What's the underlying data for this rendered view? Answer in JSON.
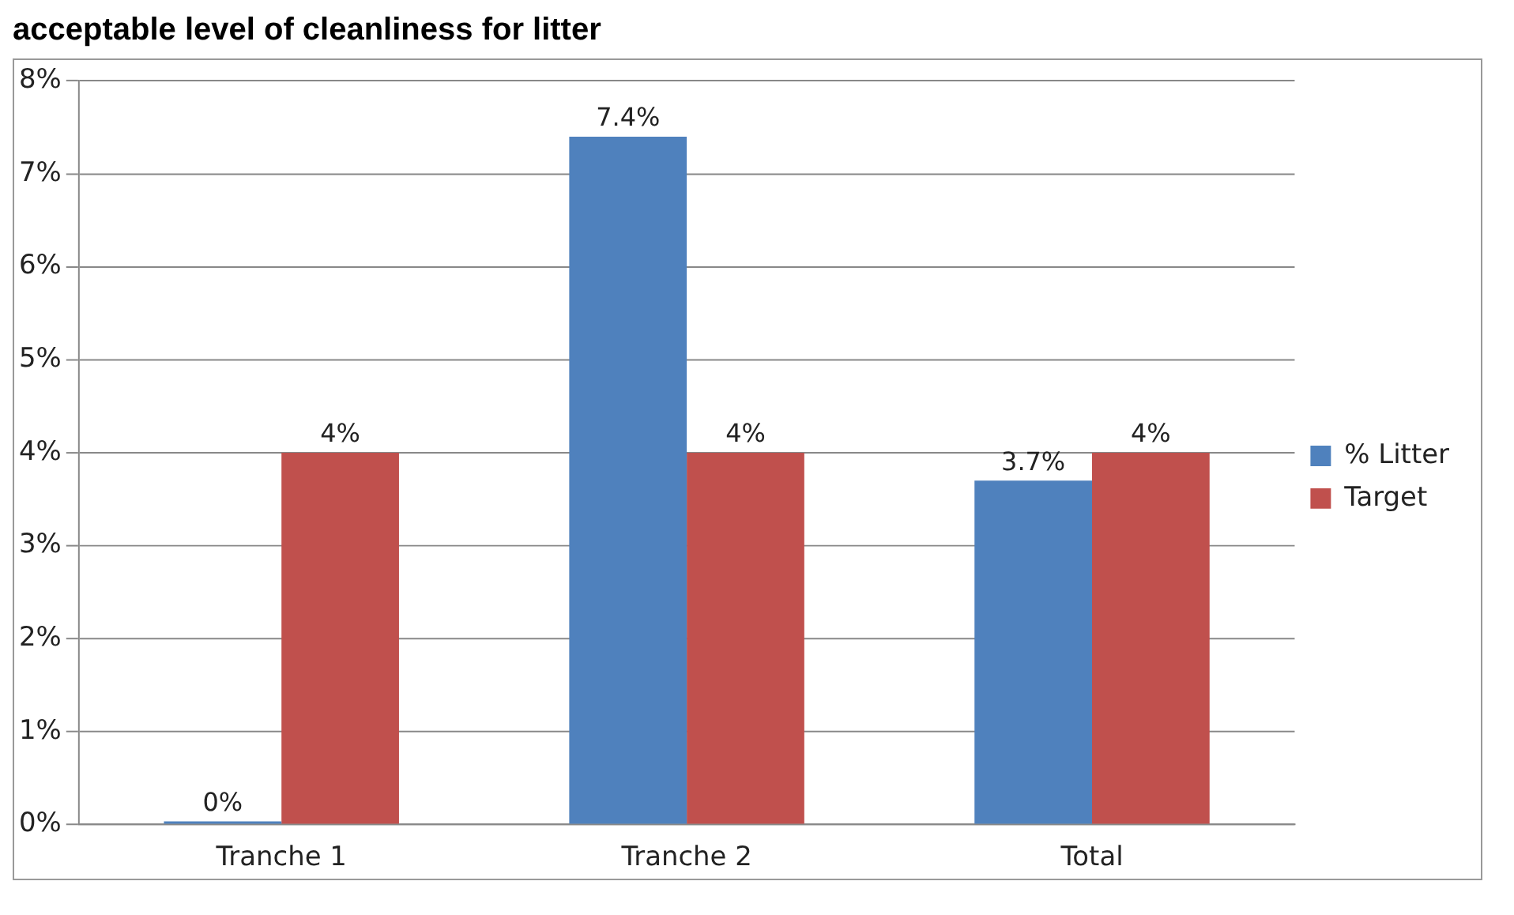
{
  "chart_data": {
    "type": "bar",
    "title": "acceptable level of cleanliness for litter",
    "categories": [
      "Tranche 1",
      "Tranche 2",
      "Total"
    ],
    "series": [
      {
        "name": "% Litter",
        "color": "#4f81bd",
        "values": [
          0,
          7.4,
          3.7
        ],
        "value_labels": [
          "0%",
          "7.4%",
          "3.7%"
        ]
      },
      {
        "name": "Target",
        "color": "#c0504d",
        "values": [
          4,
          4,
          4
        ],
        "value_labels": [
          "4%",
          "4%",
          "4%"
        ]
      }
    ],
    "ylim": [
      0,
      8
    ],
    "yticks": [
      {
        "value": 0,
        "label": "0%"
      },
      {
        "value": 1,
        "label": "1%"
      },
      {
        "value": 2,
        "label": "2%"
      },
      {
        "value": 3,
        "label": "3%"
      },
      {
        "value": 4,
        "label": "4%"
      },
      {
        "value": 5,
        "label": "5%"
      },
      {
        "value": 6,
        "label": "6%"
      },
      {
        "value": 7,
        "label": "7%"
      },
      {
        "value": 8,
        "label": "8%"
      }
    ],
    "grid": "y",
    "legend": "right"
  }
}
